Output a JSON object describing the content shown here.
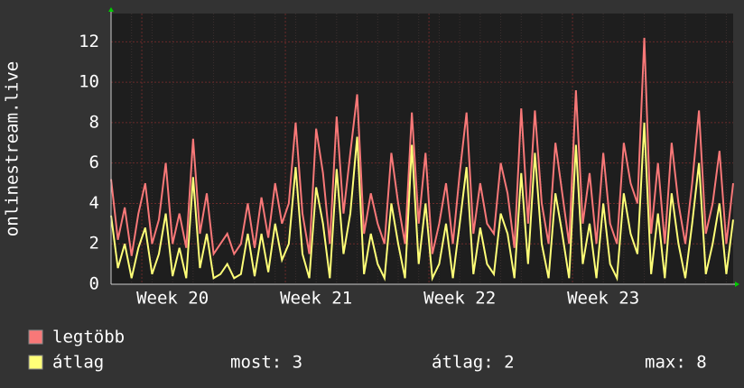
{
  "chart_data": {
    "type": "line",
    "y_label": "onlinestream.live",
    "categories": [
      null,
      null,
      null,
      null,
      null,
      null,
      null,
      null,
      null,
      "Week 20",
      null,
      null,
      null,
      null,
      null,
      null,
      null,
      null,
      null,
      null,
      null,
      null,
      null,
      null,
      null,
      null,
      null,
      null,
      null,
      null,
      "Week 21",
      null,
      null,
      null,
      null,
      null,
      null,
      null,
      null,
      null,
      null,
      null,
      null,
      null,
      null,
      null,
      null,
      null,
      null,
      null,
      null,
      "Week 22",
      null,
      null,
      null,
      null,
      null,
      null,
      null,
      null,
      null,
      null,
      null,
      null,
      null,
      null,
      null,
      null,
      null,
      null,
      null,
      null,
      "Week 23",
      null,
      null,
      null,
      null,
      null,
      null,
      null,
      null,
      null,
      null,
      null,
      null,
      null,
      null,
      null,
      null,
      null,
      null,
      null
    ],
    "series": [
      {
        "name": "legtöbb",
        "color": "#f87878",
        "values": [
          5.2,
          2.2,
          3.8,
          1.4,
          3.5,
          5.0,
          2.0,
          3.2,
          6.0,
          2.0,
          3.5,
          1.8,
          7.2,
          2.5,
          4.5,
          1.5,
          2.0,
          2.5,
          1.5,
          2.0,
          4.0,
          1.8,
          4.3,
          2.3,
          5.0,
          3.0,
          4.0,
          8.0,
          3.5,
          1.5,
          7.7,
          5.5,
          2.0,
          8.3,
          3.5,
          6.5,
          9.4,
          2.5,
          4.5,
          3.0,
          2.0,
          6.5,
          4.0,
          2.0,
          8.5,
          3.0,
          6.5,
          1.5,
          3.0,
          5.0,
          2.0,
          5.5,
          8.5,
          2.5,
          5.0,
          3.0,
          2.5,
          6.0,
          4.5,
          1.8,
          8.7,
          3.0,
          8.6,
          4.0,
          2.0,
          7.0,
          4.5,
          2.0,
          9.6,
          3.0,
          5.5,
          2.0,
          6.5,
          3.0,
          2.0,
          7.0,
          5.0,
          4.0,
          12.2,
          2.5,
          6.0,
          2.0,
          7.0,
          4.0,
          2.0,
          5.0,
          8.6,
          2.5,
          4.0,
          6.6,
          2.0,
          5.0
        ]
      },
      {
        "name": "átlag",
        "color": "#ffff78",
        "values": [
          3.4,
          0.8,
          2.0,
          0.3,
          1.8,
          2.8,
          0.5,
          1.5,
          3.5,
          0.4,
          1.8,
          0.3,
          5.3,
          0.8,
          2.5,
          0.3,
          0.5,
          1.0,
          0.3,
          0.5,
          2.5,
          0.4,
          2.5,
          0.6,
          3.0,
          1.2,
          2.0,
          5.8,
          1.5,
          0.3,
          4.8,
          3.0,
          0.3,
          5.7,
          1.5,
          3.5,
          7.3,
          0.5,
          2.5,
          1.0,
          0.3,
          4.0,
          2.0,
          0.3,
          6.9,
          1.0,
          4.0,
          0.3,
          1.0,
          3.0,
          0.3,
          3.0,
          5.8,
          0.5,
          2.8,
          1.0,
          0.5,
          3.5,
          2.5,
          0.3,
          5.5,
          1.0,
          6.5,
          2.0,
          0.3,
          4.5,
          2.5,
          0.3,
          6.9,
          1.0,
          3.0,
          0.3,
          4.0,
          1.0,
          0.3,
          4.5,
          2.5,
          1.5,
          8.0,
          0.5,
          3.5,
          0.3,
          4.5,
          2.0,
          0.3,
          3.0,
          6.0,
          0.5,
          2.0,
          4.0,
          0.5,
          3.2
        ]
      }
    ],
    "legend_stats": [
      "most: 3",
      "átlag: 2",
      "max: 8"
    ],
    "ylim": [
      0,
      13.4
    ],
    "yticks": [
      0,
      2,
      4,
      6,
      8,
      10,
      12
    ],
    "grid": true
  }
}
